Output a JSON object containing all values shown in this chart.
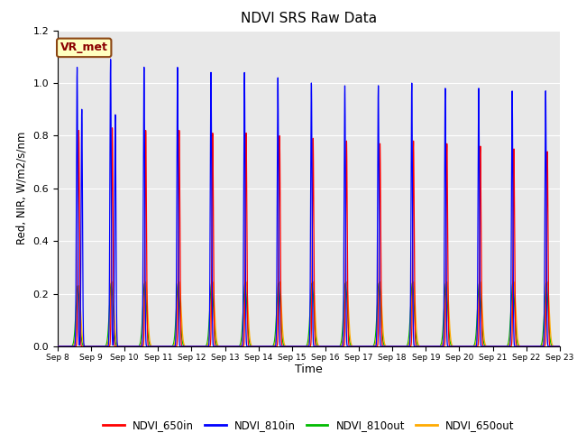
{
  "title": "NDVI SRS Raw Data",
  "xlabel": "Time",
  "ylabel": "Red, NIR, W/m2/s/nm",
  "ylim": [
    0.0,
    1.2
  ],
  "background_color": "#e8e8e8",
  "annotation_text": "VR_met",
  "annotation_bg": "#ffffc0",
  "annotation_border": "#8B4513",
  "legend_entries": [
    "NDVI_650in",
    "NDVI_810in",
    "NDVI_810out",
    "NDVI_650out"
  ],
  "line_colors": [
    "#ff0000",
    "#0000ff",
    "#00bb00",
    "#ffaa00"
  ],
  "num_cycles": 15,
  "peaks_650in": [
    0.82,
    0.83,
    0.82,
    0.82,
    0.81,
    0.81,
    0.8,
    0.79,
    0.78,
    0.77,
    0.78,
    0.77,
    0.76,
    0.75,
    0.74
  ],
  "peaks_810in": [
    1.06,
    1.09,
    1.06,
    1.06,
    1.04,
    1.04,
    1.02,
    1.0,
    0.99,
    0.99,
    1.0,
    0.98,
    0.98,
    0.97,
    0.97
  ],
  "peaks_810in2": [
    0.9,
    0.88,
    0.0,
    0.0,
    0.0,
    0.0,
    0.0,
    0.0,
    0.0,
    0.0,
    0.0,
    0.0,
    0.0,
    0.0,
    0.0
  ],
  "peaks_810out": [
    0.23,
    0.24,
    0.24,
    0.24,
    0.24,
    0.24,
    0.24,
    0.24,
    0.24,
    0.24,
    0.24,
    0.24,
    0.24,
    0.24,
    0.24
  ],
  "peaks_650out": [
    0.23,
    0.245,
    0.245,
    0.245,
    0.245,
    0.245,
    0.245,
    0.245,
    0.245,
    0.245,
    0.245,
    0.245,
    0.245,
    0.245,
    0.245
  ],
  "tick_days": [
    8,
    9,
    10,
    11,
    12,
    13,
    14,
    15,
    16,
    17,
    18,
    19,
    20,
    21,
    22,
    23
  ]
}
